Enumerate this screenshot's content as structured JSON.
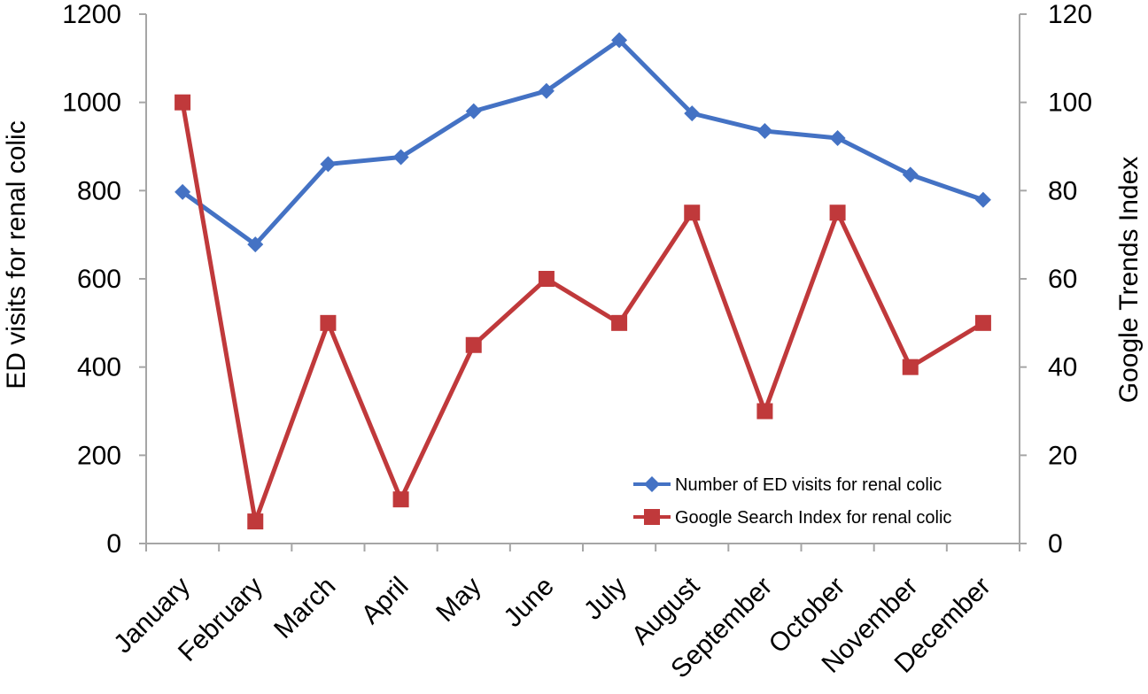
{
  "chart_data": {
    "type": "line",
    "title": "",
    "categories": [
      "January",
      "February",
      "March",
      "April",
      "May",
      "June",
      "July",
      "August",
      "September",
      "October",
      "November",
      "December"
    ],
    "y_left": {
      "label": "ED visits for renal colic",
      "lim": [
        0,
        1200
      ],
      "ticks": [
        "0",
        "200",
        "400",
        "600",
        "800",
        "1000",
        "1200"
      ]
    },
    "y_right": {
      "label": "Google Trends Index",
      "lim": [
        0,
        120
      ],
      "ticks": [
        "0",
        "20",
        "40",
        "60",
        "80",
        "100",
        "120"
      ]
    },
    "grid": false,
    "legend_position": "bottom-right",
    "series": [
      {
        "name": "Number of ED visits for renal colic",
        "axis": "left",
        "marker": "diamond",
        "color": "#4472C4",
        "values": [
          797,
          678,
          860,
          876,
          980,
          1026,
          1141,
          975,
          935,
          919,
          836,
          779
        ]
      },
      {
        "name": "Google Search Index for renal colic",
        "axis": "right",
        "marker": "square",
        "color": "#C0393B",
        "values": [
          100,
          5,
          50,
          10,
          45,
          60,
          50,
          75,
          30,
          75,
          40,
          50
        ]
      }
    ]
  }
}
